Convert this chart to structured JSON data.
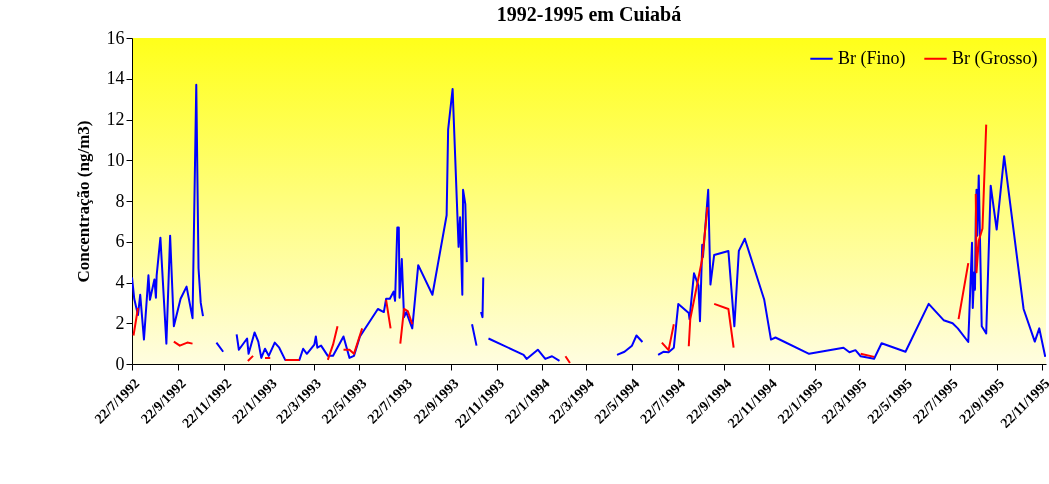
{
  "chart_data": {
    "type": "line",
    "title": "1992-1995 em Cuiabá",
    "ylabel": "Concentração (ng/m3)",
    "xlim": [
      "1992-07-22",
      "1995-11-27"
    ],
    "xticks": [
      {
        "value": "1992-07-22",
        "label": "22/7/1992"
      },
      {
        "value": "1992-09-22",
        "label": "22/9/1992"
      },
      {
        "value": "1992-11-22",
        "label": "22/11/1992"
      },
      {
        "value": "1993-01-22",
        "label": "22/1/1993"
      },
      {
        "value": "1993-03-22",
        "label": "22/3/1993"
      },
      {
        "value": "1993-05-22",
        "label": "22/5/1993"
      },
      {
        "value": "1993-07-22",
        "label": "22/7/1993"
      },
      {
        "value": "1993-09-22",
        "label": "22/9/1993"
      },
      {
        "value": "1993-11-22",
        "label": "22/11/1993"
      },
      {
        "value": "1994-01-22",
        "label": "22/1/1994"
      },
      {
        "value": "1994-03-22",
        "label": "22/3/1994"
      },
      {
        "value": "1994-05-22",
        "label": "22/5/1994"
      },
      {
        "value": "1994-07-22",
        "label": "22/7/1994"
      },
      {
        "value": "1994-09-22",
        "label": "22/9/1994"
      },
      {
        "value": "1994-11-22",
        "label": "22/11/1994"
      },
      {
        "value": "1995-01-22",
        "label": "22/1/1995"
      },
      {
        "value": "1995-03-22",
        "label": "22/3/1995"
      },
      {
        "value": "1995-05-22",
        "label": "22/5/1995"
      },
      {
        "value": "1995-07-22",
        "label": "22/7/1995"
      },
      {
        "value": "1995-09-22",
        "label": "22/9/1995"
      },
      {
        "value": "1995-11-22",
        "label": "22/11/1995"
      }
    ],
    "ylim": [
      0,
      16
    ],
    "yticks": [
      0,
      2,
      4,
      6,
      8,
      10,
      12,
      14,
      16
    ],
    "grid": false,
    "legend": "top right",
    "marker": "none",
    "line_style": "solid",
    "series": [
      {
        "name": "Br (Fino)",
        "color": "#0000ff",
        "x": [
          "1992-07-22",
          "1992-07-25",
          "1992-07-30",
          "1992-08-02",
          "1992-08-07",
          "1992-08-13",
          "1992-08-15",
          "1992-08-21",
          "1992-08-23",
          "1992-08-24",
          "1992-08-29",
          "1992-09-06",
          "1992-09-11",
          "1992-09-16",
          "1992-09-25",
          "1992-10-03",
          "1992-10-11",
          "1992-10-16",
          "1992-10-19",
          "1992-10-22",
          "1992-10-25",
          "1992-11-01",
          "1992-11-12",
          "1992-11-21",
          "1992-11-30",
          "1992-12-09",
          "1992-12-12",
          "1992-12-23",
          "1992-12-25",
          "1993-01-02",
          "1993-01-07",
          "1993-01-11",
          "1993-01-16",
          "1993-01-21",
          "1993-01-29",
          "1993-02-04",
          "1993-02-12",
          "1993-03-03",
          "1993-03-08",
          "1993-03-13",
          "1993-03-23",
          "1993-03-25",
          "1993-03-27",
          "1993-04-01",
          "1993-04-10",
          "1993-04-17",
          "1993-05-01",
          "1993-05-09",
          "1993-05-15",
          "1993-05-23",
          "1993-06-16",
          "1993-06-24",
          "1993-06-27",
          "1993-07-02",
          "1993-07-07",
          "1993-07-09",
          "1993-07-12",
          "1993-07-14",
          "1993-07-15",
          "1993-07-18",
          "1993-07-21",
          "1993-07-24",
          "1993-08-01",
          "1993-08-09",
          "1993-08-28",
          "1993-09-16",
          "1993-09-18",
          "1993-09-24",
          "1993-10-02",
          "1993-10-04",
          "1993-10-07",
          "1993-10-08",
          "1993-10-11",
          "1993-10-13",
          "1993-10-16",
          "1993-10-20",
          "1993-10-26",
          "1993-10-29",
          "1993-11-01",
          "1993-11-03",
          "1993-11-04",
          "1993-11-07",
          "1993-11-11",
          "1993-12-28",
          "1994-01-01",
          "1994-01-16",
          "1994-01-26",
          "1994-02-04",
          "1994-02-14",
          "1994-03-30",
          "1994-05-02",
          "1994-05-12",
          "1994-05-22",
          "1994-05-28",
          "1994-06-05",
          "1994-06-15",
          "1994-06-26",
          "1994-07-03",
          "1994-07-10",
          "1994-07-17",
          "1994-07-23",
          "1994-08-06",
          "1994-08-07",
          "1994-08-13",
          "1994-08-19",
          "1994-08-21",
          "1994-08-24",
          "1994-08-25",
          "1994-09-01",
          "1994-09-04",
          "1994-09-09",
          "1994-09-28",
          "1994-10-06",
          "1994-10-12",
          "1994-10-20",
          "1994-11-15",
          "1994-11-24",
          "1994-11-30",
          "1995-01-14",
          "1995-03-01",
          "1995-03-09",
          "1995-03-17",
          "1995-03-24",
          "1995-04-11",
          "1995-04-21",
          "1995-05-23",
          "1995-06-23",
          "1995-07-13",
          "1995-07-25",
          "1995-08-01",
          "1995-08-15",
          "1995-08-20",
          "1995-08-21",
          "1995-08-23",
          "1995-08-24",
          "1995-08-25",
          "1995-08-26",
          "1995-08-27",
          "1995-08-29",
          "1995-09-02",
          "1995-09-08",
          "1995-09-14",
          "1995-09-22",
          "1995-10-02",
          "1995-10-28",
          "1995-11-12",
          "1995-11-18",
          "1995-11-26"
        ],
        "values": [
          4.25,
          3.2,
          2.4,
          3.4,
          1.2,
          4.35,
          3.15,
          4.15,
          3.25,
          4.35,
          6.2,
          1.0,
          6.3,
          1.85,
          3.2,
          3.8,
          2.25,
          13.7,
          4.7,
          3.0,
          2.35,
          null,
          1.05,
          0.6,
          null,
          1.45,
          0.7,
          1.25,
          0.5,
          1.55,
          1.1,
          0.3,
          0.75,
          0.4,
          1.05,
          0.8,
          0.2,
          0.2,
          0.75,
          0.5,
          0.95,
          1.35,
          0.8,
          0.9,
          0.4,
          0.4,
          1.35,
          0.3,
          0.4,
          1.35,
          2.7,
          2.55,
          3.2,
          3.2,
          3.55,
          3.1,
          6.7,
          6.7,
          3.25,
          5.15,
          2.3,
          2.55,
          1.75,
          4.85,
          3.4,
          7.3,
          11.5,
          13.5,
          5.75,
          7.2,
          3.4,
          8.55,
          7.85,
          5.0,
          null,
          1.95,
          0.9,
          null,
          2.55,
          2.3,
          4.25,
          null,
          1.25,
          0.45,
          0.25,
          0.7,
          0.25,
          0.38,
          0.15,
          null,
          0.45,
          0.6,
          0.9,
          1.4,
          1.08,
          null,
          0.45,
          0.6,
          0.58,
          0.8,
          2.95,
          2.5,
          2.2,
          4.45,
          3.85,
          2.1,
          5.85,
          5.25,
          8.55,
          3.9,
          5.35,
          5.55,
          1.85,
          5.55,
          6.15,
          3.15,
          1.2,
          1.3,
          0.5,
          0.8,
          0.58,
          0.68,
          0.38,
          0.26,
          1.02,
          0.6,
          2.95,
          2.15,
          2.0,
          1.75,
          1.08,
          5.95,
          2.75,
          4.5,
          3.65,
          7.1,
          8.55,
          6.3,
          9.25,
          1.85,
          1.5,
          8.75,
          6.6,
          10.2,
          2.7,
          1.1,
          1.75,
          0.35
        ]
      },
      {
        "name": "Br (Grosso)",
        "color": "#ff0000",
        "x": [
          "1992-07-24",
          "1992-07-30",
          "1992-08-20",
          "1992-09-16",
          "1992-09-24",
          "1992-10-04",
          "1992-10-11",
          "1992-12-01",
          "1992-12-24",
          "1992-12-31",
          "1993-01-08",
          "1993-01-16",
          "1993-01-23",
          "1993-02-01",
          "1993-02-12",
          "1993-03-03",
          "1993-03-20",
          "1993-04-10",
          "1993-04-17",
          "1993-04-23",
          "1993-04-27",
          "1993-05-01",
          "1993-05-09",
          "1993-05-15",
          "1993-05-26",
          "1993-06-10",
          "1993-06-27",
          "1993-07-03",
          "1993-07-10",
          "1993-07-16",
          "1993-07-21",
          "1993-07-26",
          "1993-08-01",
          "1993-12-01",
          "1994-02-22",
          "1994-02-28",
          "1994-05-01",
          "1994-07-01",
          "1994-07-10",
          "1994-07-17",
          "1994-07-30",
          "1994-08-06",
          "1994-08-08",
          "1994-08-24",
          "1994-08-31",
          "1994-09-05",
          "1994-09-09",
          "1994-09-28",
          "1994-10-05",
          "1995-01-01",
          "1995-03-24",
          "1995-04-11",
          "1995-06-01",
          "1995-08-02",
          "1995-08-15",
          "1995-08-20",
          "1995-08-25",
          "1995-08-26",
          "1995-08-29",
          "1995-09-03",
          "1995-09-08"
        ],
        "values": [
          1.4,
          2.75,
          null,
          1.1,
          0.9,
          1.05,
          1.0,
          null,
          0.15,
          0.4,
          null,
          0.3,
          0.3,
          null,
          0.2,
          0.2,
          null,
          0.2,
          0.95,
          1.85,
          null,
          0.7,
          0.7,
          0.5,
          1.75,
          null,
          3.15,
          1.75,
          null,
          1.0,
          2.7,
          2.6,
          1.95,
          null,
          0.38,
          0.05,
          null,
          1.05,
          0.68,
          1.95,
          null,
          0.87,
          2.2,
          5.15,
          7.7,
          null,
          2.95,
          2.7,
          0.8,
          null,
          0.5,
          0.35,
          null,
          2.2,
          4.95,
          null,
          8.35,
          4.5,
          6.05,
          6.65,
          11.75
        ]
      }
    ]
  }
}
